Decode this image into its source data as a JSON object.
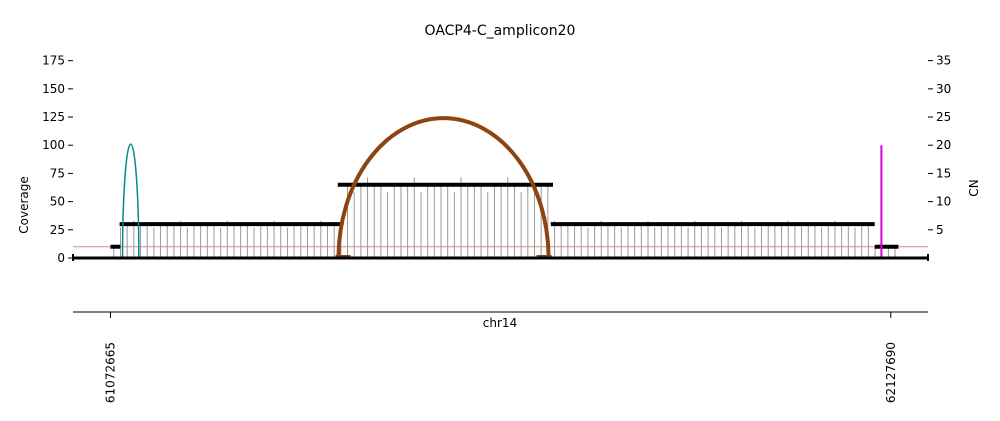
{
  "chart_data": {
    "type": "amplicon-coverage",
    "title": "OACP4-C_amplicon20",
    "chromosome": "chr14",
    "xlim": [
      61022000,
      62178000
    ],
    "x_ticks": [
      {
        "value": 61072665,
        "label": "61072665"
      },
      {
        "value": 62127690,
        "label": "62127690"
      }
    ],
    "left_axis": {
      "label": "Coverage",
      "ylim": [
        0,
        180
      ],
      "ticks": [
        0,
        25,
        50,
        75,
        100,
        125,
        150,
        175
      ]
    },
    "right_axis": {
      "label": "CN",
      "ylim": [
        0,
        36
      ],
      "ticks": [
        5,
        10,
        15,
        20,
        25,
        30,
        35
      ]
    },
    "copy_number_segments": [
      {
        "start": 61072665,
        "end": 61086000,
        "cn": 2
      },
      {
        "start": 61085000,
        "end": 61385000,
        "cn": 6
      },
      {
        "start": 61380000,
        "end": 61671000,
        "cn": 13
      },
      {
        "start": 61668000,
        "end": 62106000,
        "cn": 6
      },
      {
        "start": 62106000,
        "end": 62138000,
        "cn": 2
      }
    ],
    "baseline_cn": 2,
    "breakpoints": [
      {
        "type": "arc",
        "start": 61381000,
        "end": 61665000,
        "peak_coverage": 124,
        "color": "#8B4513"
      },
      {
        "type": "arc",
        "start": 61089000,
        "end": 61111000,
        "peak_coverage": 101,
        "color": "#008B8B"
      },
      {
        "type": "line",
        "position": 62115000,
        "coverage": 100,
        "color": "#DD00DD"
      }
    ],
    "coverage_bins_count": 118,
    "colors": {
      "segment": "#000000",
      "coverage": "#999999",
      "baseline": "#d48a8a"
    }
  }
}
